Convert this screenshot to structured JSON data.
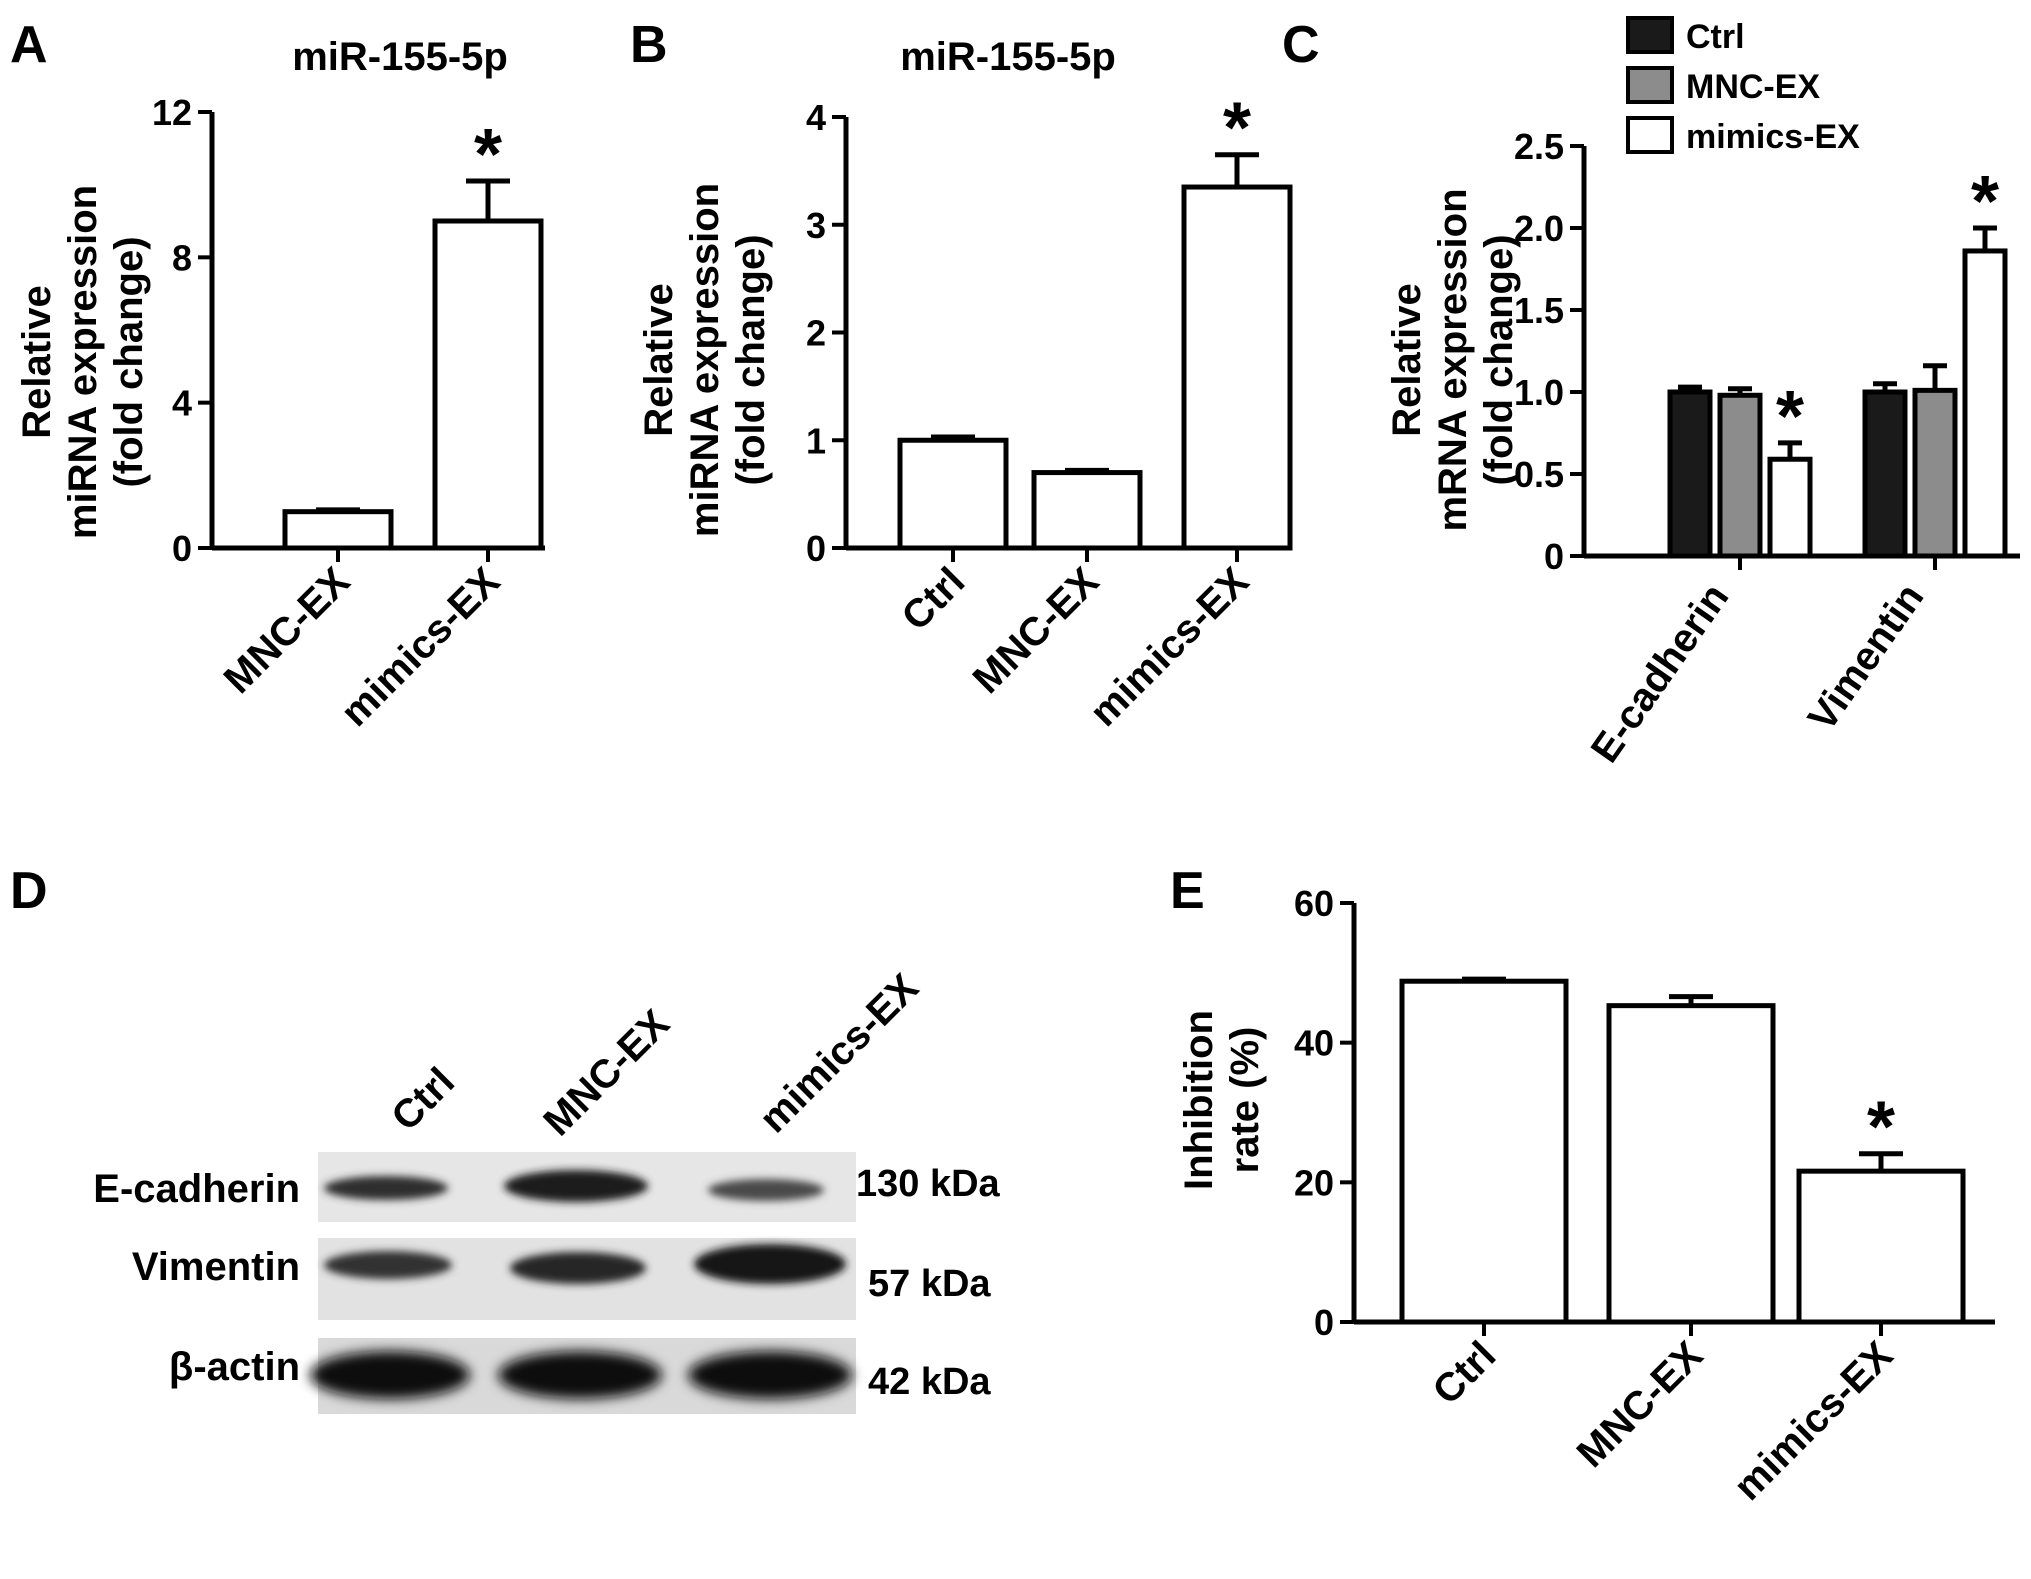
{
  "panels": {
    "A": {
      "letter": "A",
      "title": "miR-155-5p",
      "ylabel": [
        "Relative",
        "miRNA expression",
        "(fold change)"
      ]
    },
    "B": {
      "letter": "B",
      "title": "miR-155-5p",
      "ylabel": [
        "Relative",
        "miRNA expression",
        "(fold change)"
      ]
    },
    "C": {
      "letter": "C",
      "ylabel": [
        "Relative",
        "mRNA expression",
        "(fold change)"
      ]
    },
    "D": {
      "letter": "D",
      "lanes": [
        "Ctrl",
        "MNC-EX",
        "mimics-EX"
      ],
      "rows": [
        {
          "protein": "E-cadherin",
          "kda": "130 kDa"
        },
        {
          "protein": "Vimentin",
          "kda": "57 kDa"
        },
        {
          "protein": "β-actin",
          "kda": "42 kDa"
        }
      ]
    },
    "E": {
      "letter": "E",
      "ylabel": [
        "Inhibition",
        "rate (%)"
      ]
    }
  },
  "chart_data": [
    {
      "panel": "A",
      "type": "bar",
      "title": "miR-155-5p",
      "ylabel": "Relative miRNA expression (fold change)",
      "categories": [
        "MNC-EX",
        "mimics-EX"
      ],
      "values": [
        1.0,
        9.0
      ],
      "errors": [
        0.05,
        1.1
      ],
      "significance": [
        "",
        "*"
      ],
      "ylim": [
        0,
        12
      ],
      "yticks": [
        0,
        4,
        8,
        12
      ],
      "colors": [
        "#ffffff",
        "#ffffff"
      ]
    },
    {
      "panel": "B",
      "type": "bar",
      "title": "miR-155-5p",
      "ylabel": "Relative miRNA expression (fold change)",
      "categories": [
        "Ctrl",
        "MNC-EX",
        "mimics-EX"
      ],
      "values": [
        1.0,
        0.7,
        3.35
      ],
      "errors": [
        0.03,
        0.02,
        0.3
      ],
      "significance": [
        "",
        "",
        "*"
      ],
      "ylim": [
        0,
        4
      ],
      "yticks": [
        0,
        1,
        2,
        3,
        4
      ],
      "colors": [
        "#ffffff",
        "#ffffff",
        "#ffffff"
      ]
    },
    {
      "panel": "C",
      "type": "bar",
      "ylabel": "Relative mRNA expression (fold change)",
      "categories": [
        "E-cadherin",
        "Vimentin"
      ],
      "series": [
        {
          "name": "Ctrl",
          "color": "#1a1a1a",
          "values": [
            1.0,
            1.0
          ],
          "errors": [
            0.03,
            0.05
          ],
          "significance": [
            "",
            ""
          ]
        },
        {
          "name": "MNC-EX",
          "color": "#8c8c8c",
          "values": [
            0.98,
            1.01
          ],
          "errors": [
            0.04,
            0.15
          ],
          "significance": [
            "",
            ""
          ]
        },
        {
          "name": "mimics-EX",
          "color": "#ffffff",
          "values": [
            0.59,
            1.86
          ],
          "errors": [
            0.1,
            0.14
          ],
          "significance": [
            "*",
            "*"
          ]
        }
      ],
      "ylim": [
        0,
        2.5
      ],
      "yticks": [
        "0",
        "0.5",
        "1.0",
        "1.5",
        "2.0",
        "2.5"
      ],
      "legend": "top"
    },
    {
      "panel": "E",
      "type": "bar",
      "ylabel": "Inhibition rate (%)",
      "categories": [
        "Ctrl",
        "MNC-EX",
        "mimics-EX"
      ],
      "values": [
        48.8,
        45.3,
        21.6
      ],
      "errors": [
        0.3,
        1.3,
        2.5
      ],
      "significance": [
        "",
        "",
        "*"
      ],
      "ylim": [
        0,
        60
      ],
      "yticks": [
        0,
        20,
        40,
        60
      ],
      "colors": [
        "#ffffff",
        "#ffffff",
        "#ffffff"
      ]
    }
  ]
}
